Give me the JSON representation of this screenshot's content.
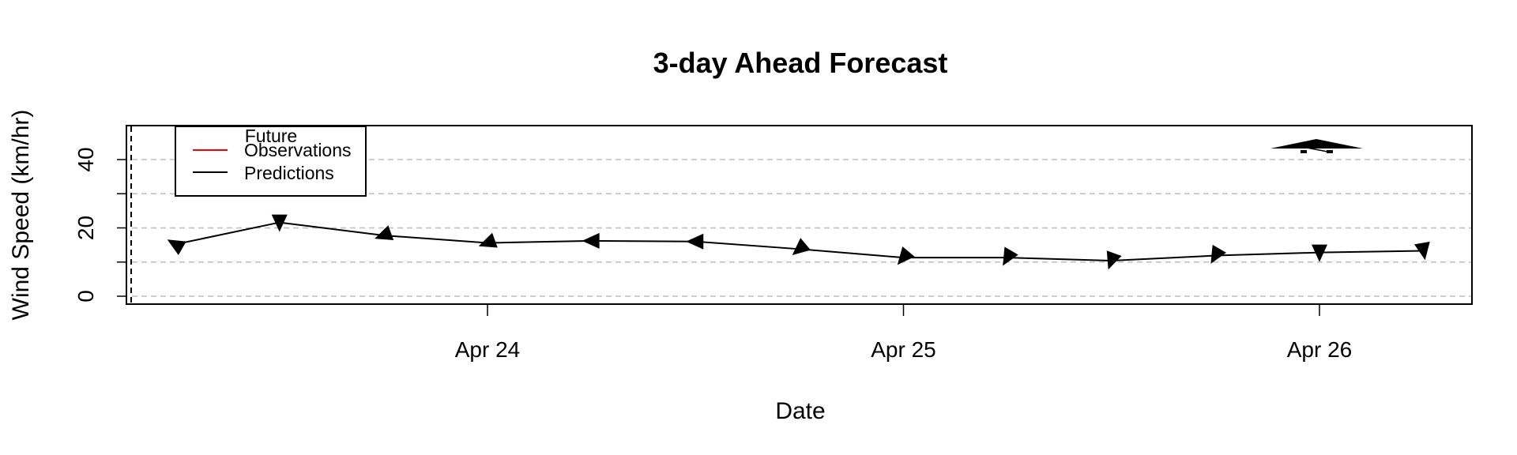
{
  "chart_data": {
    "type": "line",
    "title": "3-day Ahead Forecast",
    "xlabel": "Date",
    "ylabel": "Wind Speed (km/hr)",
    "x_ticks": [
      "Apr 24",
      "Apr 25",
      "Apr 26"
    ],
    "y_ticks": [
      0,
      20,
      40
    ],
    "ylim": [
      -2,
      50
    ],
    "grid": "horizontal dashed at 0, 10, 20, 30, 40",
    "legend": {
      "position": "top-left",
      "title": "Future",
      "entries": [
        {
          "label": "Observations",
          "color": "#ff0000"
        },
        {
          "label": "Predictions",
          "color": "#000000"
        }
      ]
    },
    "series": [
      {
        "name": "Predictions",
        "color": "#000000",
        "x": [
          "Apr 23 06:00",
          "Apr 23 12:00",
          "Apr 23 18:00",
          "Apr 24 00:00",
          "Apr 24 06:00",
          "Apr 24 12:00",
          "Apr 24 18:00",
          "Apr 25 00:00",
          "Apr 25 06:00",
          "Apr 25 12:00",
          "Apr 25 18:00",
          "Apr 26 00:00",
          "Apr 26 06:00"
        ],
        "values": [
          15.2,
          21.6,
          17.8,
          15.6,
          16.2,
          16.0,
          13.8,
          11.3,
          11.3,
          10.4,
          11.9,
          12.8,
          13.3
        ],
        "arrow_direction_deg": [
          300,
          180,
          250,
          250,
          270,
          270,
          230,
          220,
          210,
          200,
          210,
          180,
          170
        ]
      }
    ],
    "colors": {
      "observations": "#ff0000",
      "predictions": "#000000",
      "grid": "#bebebe"
    }
  }
}
